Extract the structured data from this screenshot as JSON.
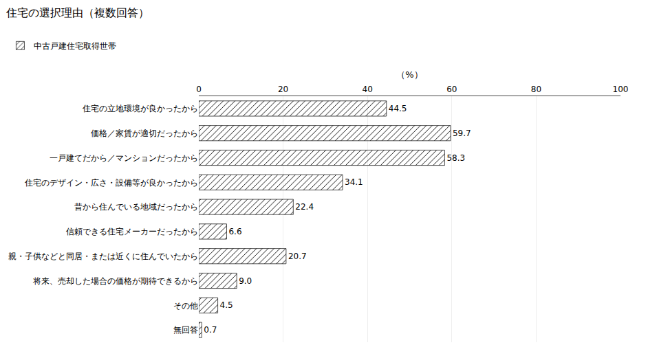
{
  "chart_data": {
    "type": "bar",
    "orientation": "horizontal",
    "title": "住宅の選択理由（複数回答）",
    "xlabel": "（%）",
    "categories": [
      "住宅の立地環境が良かったから",
      "価格／家賃が適切だったから",
      "一戸建てだから／マンションだったから",
      "住宅のデザイン・広さ・設備等が良かったから",
      "昔から住んでいる地域だったから",
      "信頼できる住宅メーカーだったから",
      "親・子供などと同居・または近くに住んでいたから",
      "将来、売却した場合の価格が期待できるから",
      "その他",
      "無回答"
    ],
    "series": [
      {
        "name": "中古戸建住宅取得世帯",
        "color": "#b0b0b0",
        "values": [
          44.5,
          59.7,
          58.3,
          34.1,
          22.4,
          6.6,
          20.7,
          9.0,
          4.5,
          0.7
        ],
        "value_labels": [
          "44.5",
          "59.7",
          "58.3",
          "34.1",
          "22.4",
          "6.6",
          "20.7",
          "9.0",
          "4.5",
          "0.7"
        ]
      }
    ],
    "xlim": [
      0,
      100
    ],
    "xticks": [
      0,
      20,
      40,
      60,
      80,
      100
    ],
    "grid": true,
    "legend": "upper left",
    "data_labels": true
  }
}
